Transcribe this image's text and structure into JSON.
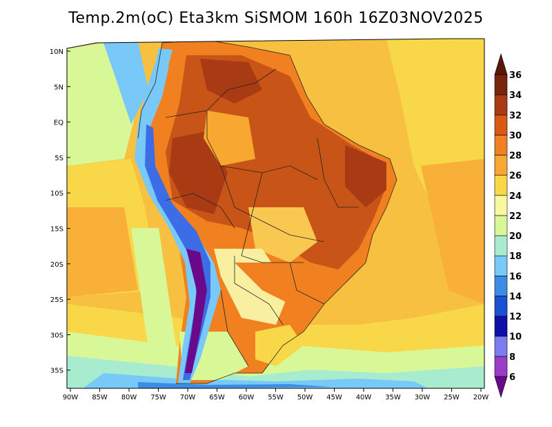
{
  "title": "Temp.2m(oC) Eta3km SiSMOM 160h 16Z03NOV2025",
  "lat_labels": [
    "10N",
    "5N",
    "EQ",
    "5S",
    "10S",
    "15S",
    "20S",
    "25S",
    "30S",
    "35S"
  ],
  "lon_labels": [
    "90W",
    "85W",
    "80W",
    "75W",
    "70W",
    "65W",
    "60W",
    "55W",
    "50W",
    "45W",
    "40W",
    "35W",
    "30W",
    "25W",
    "20W"
  ],
  "colorbar": {
    "labels": [
      "6",
      "8",
      "10",
      "12",
      "14",
      "16",
      "18",
      "20",
      "22",
      "24",
      "26",
      "28",
      "30",
      "32",
      "34",
      "36"
    ],
    "colors": [
      "#6a0a8a",
      "#9a3cc8",
      "#7c7cf0",
      "#1010a8",
      "#1c52d2",
      "#3c8ce6",
      "#78c8f8",
      "#a8ecd0",
      "#d8f898",
      "#f8f8a0",
      "#f8d848",
      "#f8a830",
      "#f08020",
      "#d85814",
      "#a83a14",
      "#7a2410",
      "#5a1808"
    ],
    "under_color": "#6a0a8a",
    "over_color": "#5a1808"
  },
  "field_colors": {
    "ocean_warm": "#f8b038",
    "ocean_mid": "#f8d848",
    "ocean_cool": "#d8f898",
    "ocean_cold": "#78c8f8",
    "land_hot": "#c85418",
    "land_very_hot": "#a83a14",
    "land_warm": "#f08020",
    "land_mild": "#f8a830",
    "andes_cold": "#3c6ce6",
    "andes_very_cold": "#6a0a8a"
  }
}
